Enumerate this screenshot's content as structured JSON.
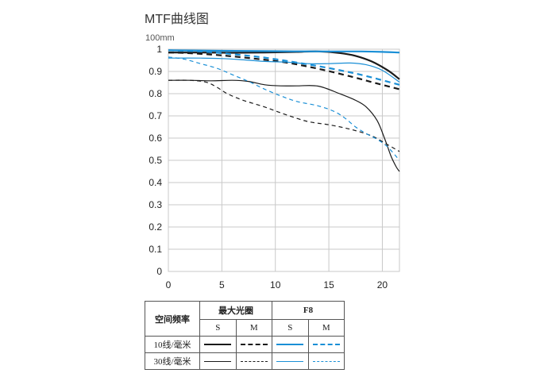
{
  "chart_data": {
    "type": "line",
    "title": "MTF曲线图",
    "subtitle": "100mm",
    "xlabel": "",
    "ylabel": "",
    "xlim": [
      0,
      21.6
    ],
    "ylim": [
      0,
      1
    ],
    "xticks": [
      0,
      5,
      10,
      15,
      20
    ],
    "yticks": [
      0,
      0.1,
      0.2,
      0.3,
      0.4,
      0.5,
      0.6,
      0.7,
      0.8,
      0.9,
      1
    ],
    "ytick_labels": [
      "0",
      "0.1",
      "0.2",
      "0.3",
      "0.4",
      "0.5",
      "0.6",
      "0.7",
      "0.8",
      "0.9",
      "1"
    ],
    "grid": true,
    "colors": {
      "black": "#1a1a1a",
      "blue": "#1a8fd6"
    },
    "series": [
      {
        "id": "max-10-s",
        "color": "#1a1a1a",
        "dash": false,
        "width": 2.2,
        "x": [
          0,
          3,
          6,
          9,
          12,
          14,
          16,
          17.5,
          19,
          20.5,
          21.6
        ],
        "y": [
          0.985,
          0.985,
          0.984,
          0.985,
          0.988,
          0.99,
          0.983,
          0.97,
          0.945,
          0.905,
          0.865
        ]
      },
      {
        "id": "max-10-m",
        "color": "#1a1a1a",
        "dash": true,
        "width": 2.2,
        "x": [
          0,
          2,
          5,
          8,
          11,
          14,
          17,
          19,
          21.6
        ],
        "y": [
          0.985,
          0.982,
          0.972,
          0.958,
          0.94,
          0.912,
          0.878,
          0.852,
          0.82
        ]
      },
      {
        "id": "max-30-s",
        "color": "#1a1a1a",
        "dash": false,
        "width": 1.2,
        "x": [
          0,
          2,
          4,
          6,
          7.5,
          9,
          10.5,
          12,
          14,
          16,
          17.5,
          18.5,
          19.5,
          20.2,
          20.8,
          21.3,
          21.6
        ],
        "y": [
          0.86,
          0.86,
          0.858,
          0.86,
          0.855,
          0.84,
          0.835,
          0.835,
          0.834,
          0.8,
          0.77,
          0.74,
          0.68,
          0.6,
          0.52,
          0.47,
          0.45
        ]
      },
      {
        "id": "max-30-m",
        "color": "#1a1a1a",
        "dash": true,
        "width": 1.2,
        "x": [
          0,
          2,
          3.5,
          4.5,
          5.5,
          7,
          9,
          11,
          13,
          15,
          17,
          19,
          20.5,
          21.6
        ],
        "y": [
          0.86,
          0.86,
          0.852,
          0.83,
          0.8,
          0.77,
          0.74,
          0.705,
          0.675,
          0.66,
          0.64,
          0.61,
          0.57,
          0.54
        ]
      },
      {
        "id": "f8-10-s",
        "color": "#1a8fd6",
        "dash": false,
        "width": 2.2,
        "x": [
          0,
          5,
          10,
          15,
          18,
          20,
          21.6
        ],
        "y": [
          0.995,
          0.993,
          0.991,
          0.99,
          0.99,
          0.988,
          0.985
        ]
      },
      {
        "id": "f8-10-m",
        "color": "#1a8fd6",
        "dash": true,
        "width": 2.2,
        "x": [
          0,
          3,
          6,
          9,
          12,
          15,
          18,
          21.6
        ],
        "y": [
          0.995,
          0.99,
          0.978,
          0.962,
          0.94,
          0.915,
          0.885,
          0.84
        ]
      },
      {
        "id": "f8-30-s",
        "color": "#1a8fd6",
        "dash": false,
        "width": 1.2,
        "x": [
          0,
          3,
          5,
          7,
          9,
          11,
          13,
          15,
          17,
          18.5,
          20,
          21.6
        ],
        "y": [
          0.96,
          0.96,
          0.958,
          0.952,
          0.945,
          0.942,
          0.935,
          0.935,
          0.938,
          0.93,
          0.905,
          0.852
        ]
      },
      {
        "id": "f8-30-m",
        "color": "#1a8fd6",
        "dash": true,
        "width": 1.2,
        "x": [
          0,
          1.5,
          3,
          4.5,
          6,
          7.5,
          9,
          10.5,
          12,
          14,
          15.5,
          16.5,
          17.5,
          18.5,
          19.5,
          20.5,
          21.6
        ],
        "y": [
          0.965,
          0.955,
          0.935,
          0.915,
          0.885,
          0.855,
          0.82,
          0.79,
          0.765,
          0.745,
          0.72,
          0.69,
          0.65,
          0.62,
          0.595,
          0.56,
          0.5
        ]
      }
    ]
  },
  "legend": {
    "row_header": "空间频率",
    "group_max": "最大光圈",
    "group_f8": "F8",
    "col_s": "S",
    "col_m": "M",
    "row_10": "10线/毫米",
    "row_30": "30线/毫米"
  }
}
